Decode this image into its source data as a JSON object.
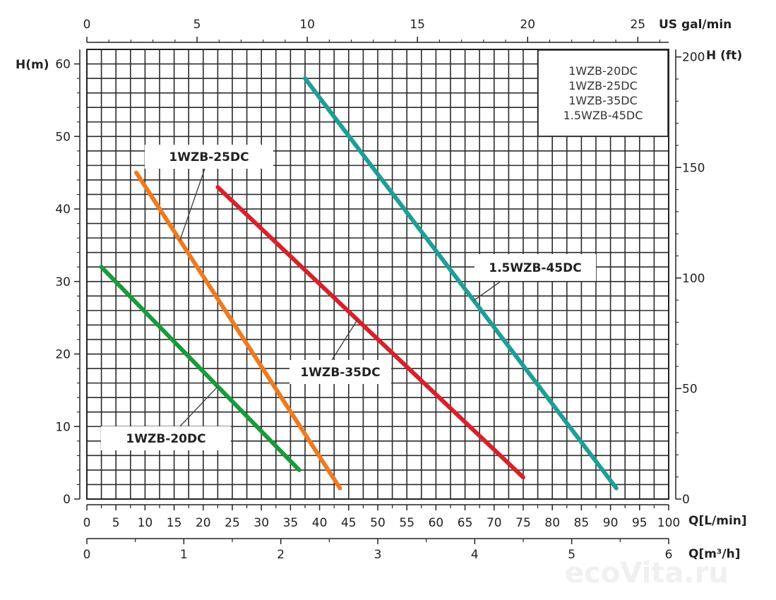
{
  "chart_data": {
    "type": "line",
    "legend": {
      "placement": "top-right",
      "entries": [
        "1WZB-20DC",
        "1WZB-25DC",
        "1WZB-35DC",
        "1.5WZB-45DC"
      ]
    },
    "axes": {
      "x_bottom": {
        "label": "Q[L/min]",
        "ticks": [
          "0",
          "5",
          "10",
          "15",
          "20",
          "25",
          "30",
          "35",
          "40",
          "45",
          "50",
          "55",
          "60",
          "65",
          "70",
          "75",
          "80",
          "85",
          "90",
          "95",
          "100"
        ],
        "range": [
          0,
          100
        ]
      },
      "x_bottom2": {
        "label": "Q[m³/h]",
        "ticks": [
          "0",
          "1",
          "2",
          "3",
          "4",
          "5",
          "6"
        ],
        "range": [
          0,
          6
        ]
      },
      "x_top": {
        "label": "US  gal/min",
        "ticks": [
          "0",
          "5",
          "10",
          "15",
          "20",
          "25"
        ],
        "range": [
          0,
          26.4
        ]
      },
      "y_left": {
        "label": "H(m)",
        "ticks": [
          "0",
          "10",
          "20",
          "30",
          "40",
          "50",
          "60"
        ],
        "range": [
          0,
          60
        ]
      },
      "y_right": {
        "label": "H (ft)",
        "ticks": [
          "0",
          "50",
          "100",
          "150",
          "200"
        ],
        "range": [
          0,
          196.9
        ]
      }
    },
    "grid": true,
    "series": [
      {
        "name": "1WZB-20DC",
        "color": "#1a9a3a",
        "x": [
          2.5,
          36.5
        ],
        "y": [
          32,
          4
        ]
      },
      {
        "name": "1WZB-25DC",
        "color": "#f07a1e",
        "x": [
          8.5,
          43.5
        ],
        "y": [
          45,
          1.5
        ]
      },
      {
        "name": "1WZB-35DC",
        "color": "#d9202a",
        "x": [
          22.5,
          75
        ],
        "y": [
          43,
          3
        ]
      },
      {
        "name": "1.5WZB-45DC",
        "color": "#1e9e96",
        "x": [
          37.5,
          91
        ],
        "y": [
          58,
          1.5
        ]
      }
    ],
    "callouts": [
      {
        "text": "1WZB-20DC",
        "series": 0
      },
      {
        "text": "1WZB-25DC",
        "series": 1
      },
      {
        "text": "1WZB-35DC",
        "series": 2
      },
      {
        "text": "1.5WZB-45DC",
        "series": 3
      }
    ]
  },
  "watermark": "ecoVita.ru"
}
